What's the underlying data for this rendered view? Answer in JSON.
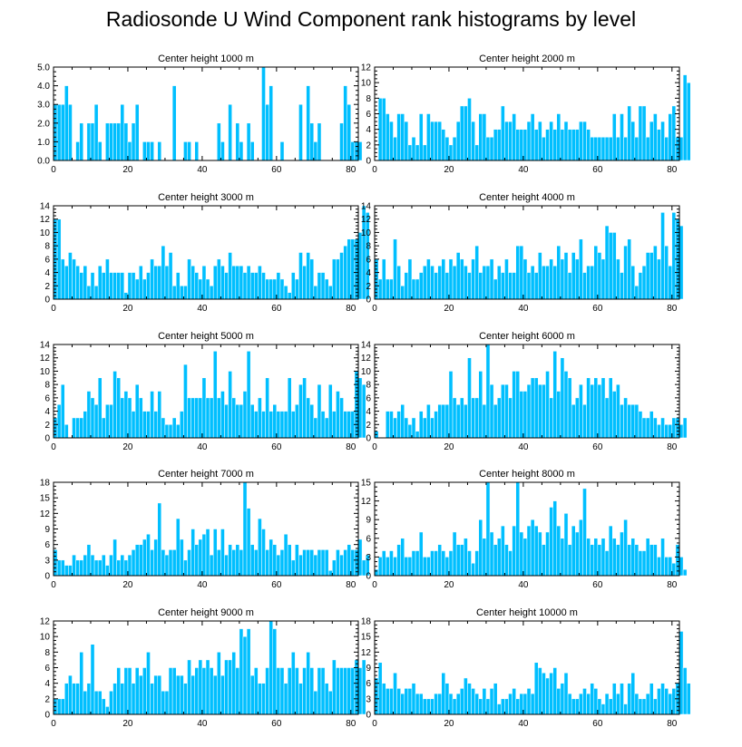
{
  "title": "Radiosonde U Wind Component rank histograms by level",
  "bar_color": "#00BFFF",
  "bar_edge_color": "#ffffff",
  "chart_data": [
    {
      "type": "bar",
      "title": "Center height 1000 m",
      "xlim": [
        0,
        82
      ],
      "xticks": [
        0,
        20,
        40,
        60,
        80
      ],
      "ylim": [
        0,
        5
      ],
      "yticks": [
        0,
        1,
        2,
        3,
        4,
        5
      ],
      "ytick_labels": [
        "0.0",
        "1.0",
        "2.0",
        "3.0",
        "4.0",
        "5.0"
      ],
      "values": [
        3,
        3,
        3,
        4,
        3,
        0,
        1,
        2,
        0,
        2,
        2,
        3,
        1,
        0,
        2,
        2,
        2,
        2,
        3,
        2,
        1,
        2,
        3,
        0,
        1,
        1,
        1,
        0,
        1,
        0,
        0,
        0,
        4,
        0,
        0,
        1,
        1,
        0,
        1,
        0,
        0,
        0,
        0,
        0,
        2,
        1,
        0,
        3,
        0,
        2,
        1,
        0,
        2,
        1,
        0,
        0,
        5,
        3,
        4,
        0,
        0,
        1,
        0,
        0,
        0,
        0,
        3,
        0,
        4,
        2,
        1,
        2,
        0,
        0,
        0,
        0,
        0,
        2,
        4,
        3,
        1,
        1,
        1
      ]
    },
    {
      "type": "bar",
      "title": "Center height 2000 m",
      "xlim": [
        0,
        82
      ],
      "xticks": [
        0,
        20,
        40,
        60,
        80
      ],
      "ylim": [
        0,
        12
      ],
      "yticks": [
        0,
        2,
        4,
        6,
        8,
        10,
        12
      ],
      "values": [
        0,
        8,
        8,
        6,
        5,
        3,
        6,
        6,
        5,
        2,
        3,
        2,
        6,
        2,
        6,
        5,
        5,
        5,
        4,
        3,
        2,
        3,
        5,
        7,
        7,
        8,
        5,
        2,
        6,
        6,
        3,
        3,
        4,
        4,
        7,
        5,
        5,
        6,
        4,
        4,
        4,
        5,
        6,
        4,
        5,
        3,
        4,
        5,
        4,
        6,
        4,
        5,
        4,
        4,
        4,
        5,
        5,
        4,
        3,
        3,
        3,
        3,
        3,
        3,
        6,
        3,
        6,
        3,
        7,
        5,
        3,
        7,
        7,
        3,
        5,
        6,
        4,
        5,
        3,
        6,
        7,
        3,
        3,
        11,
        10
      ]
    },
    {
      "type": "bar",
      "title": "Center height 3000 m",
      "xlim": [
        0,
        82
      ],
      "xticks": [
        0,
        20,
        40,
        60,
        80
      ],
      "ylim": [
        0,
        14
      ],
      "yticks": [
        0,
        2,
        4,
        6,
        8,
        10,
        12,
        14
      ],
      "values": [
        12,
        12,
        6,
        5,
        7,
        6,
        5,
        4,
        5,
        2,
        4,
        2,
        5,
        4,
        6,
        4,
        4,
        4,
        4,
        1,
        4,
        4,
        3,
        5,
        3,
        4,
        6,
        5,
        5,
        8,
        5,
        7,
        2,
        4,
        2,
        2,
        6,
        5,
        4,
        3,
        5,
        3,
        2,
        5,
        6,
        5,
        4,
        7,
        5,
        5,
        5,
        4,
        5,
        4,
        4,
        5,
        4,
        3,
        3,
        3,
        4,
        3,
        2,
        1,
        4,
        3,
        7,
        5,
        7,
        6,
        2,
        4,
        4,
        3,
        2,
        6,
        6,
        7,
        8,
        9,
        9,
        9,
        10,
        14,
        13
      ]
    },
    {
      "type": "bar",
      "title": "Center height 4000 m",
      "xlim": [
        0,
        82
      ],
      "xticks": [
        0,
        20,
        40,
        60,
        80
      ],
      "ylim": [
        0,
        14
      ],
      "yticks": [
        0,
        2,
        4,
        6,
        8,
        10,
        12,
        14
      ],
      "values": [
        6,
        3,
        6,
        3,
        3,
        9,
        5,
        2,
        4,
        6,
        3,
        3,
        4,
        5,
        6,
        5,
        4,
        5,
        6,
        4,
        6,
        5,
        7,
        6,
        5,
        4,
        6,
        8,
        4,
        5,
        5,
        6,
        3,
        5,
        4,
        6,
        4,
        4,
        8,
        8,
        6,
        4,
        5,
        4,
        7,
        5,
        5,
        6,
        5,
        8,
        6,
        7,
        4,
        7,
        6,
        9,
        4,
        5,
        5,
        8,
        7,
        6,
        11,
        10,
        10,
        6,
        4,
        8,
        9,
        5,
        2,
        4,
        5,
        7,
        7,
        8,
        6,
        13,
        8,
        5,
        13,
        12,
        11
      ]
    },
    {
      "type": "bar",
      "title": "Center height 5000 m",
      "xlim": [
        0,
        82
      ],
      "xticks": [
        0,
        20,
        40,
        60,
        80
      ],
      "ylim": [
        0,
        14
      ],
      "yticks": [
        0,
        2,
        4,
        6,
        8,
        10,
        12,
        14
      ],
      "values": [
        3,
        5,
        8,
        2,
        0,
        3,
        3,
        3,
        4,
        7,
        6,
        5,
        9,
        3,
        5,
        5,
        10,
        9,
        6,
        7,
        6,
        4,
        8,
        6,
        4,
        4,
        7,
        4,
        7,
        3,
        2,
        2,
        3,
        2,
        4,
        11,
        6,
        6,
        6,
        6,
        9,
        6,
        6,
        13,
        6,
        7,
        5,
        10,
        6,
        5,
        5,
        7,
        13,
        5,
        4,
        6,
        4,
        9,
        4,
        5,
        4,
        4,
        4,
        9,
        4,
        5,
        8,
        9,
        6,
        5,
        3,
        8,
        4,
        3,
        8,
        4,
        7,
        6,
        4,
        4,
        4,
        10,
        9,
        8
      ]
    },
    {
      "type": "bar",
      "title": "Center height 6000 m",
      "xlim": [
        0,
        82
      ],
      "xticks": [
        0,
        20,
        40,
        60,
        80
      ],
      "ylim": [
        0,
        14
      ],
      "yticks": [
        0,
        2,
        4,
        6,
        8,
        10,
        12,
        14
      ],
      "values": [
        1,
        0,
        0,
        4,
        4,
        3,
        4,
        5,
        3,
        2,
        3,
        1,
        4,
        3,
        5,
        3,
        4,
        5,
        5,
        5,
        10,
        6,
        5,
        6,
        5,
        12,
        6,
        6,
        10,
        5,
        14,
        8,
        5,
        6,
        8,
        8,
        6,
        10,
        10,
        7,
        7,
        8,
        9,
        9,
        8,
        8,
        10,
        6,
        13,
        7,
        12,
        10,
        9,
        5,
        6,
        8,
        5,
        9,
        8,
        9,
        8,
        9,
        6,
        9,
        7,
        8,
        5,
        6,
        5,
        5,
        5,
        4,
        3,
        3,
        4,
        3,
        2,
        3,
        2,
        2,
        3,
        3,
        2,
        3
      ]
    },
    {
      "type": "bar",
      "title": "Center height 7000 m",
      "xlim": [
        0,
        82
      ],
      "xticks": [
        0,
        20,
        40,
        60,
        80
      ],
      "ylim": [
        0,
        18
      ],
      "yticks": [
        0,
        3,
        6,
        9,
        12,
        15,
        18
      ],
      "values": [
        5,
        3,
        3,
        2,
        2,
        4,
        3,
        3,
        4,
        6,
        4,
        3,
        3,
        4,
        2,
        4,
        7,
        3,
        4,
        3,
        4,
        5,
        6,
        6,
        7,
        8,
        5,
        7,
        14,
        5,
        4,
        5,
        5,
        11,
        7,
        3,
        5,
        9,
        6,
        7,
        8,
        9,
        4,
        9,
        5,
        9,
        4,
        6,
        5,
        6,
        5,
        18,
        13,
        6,
        5,
        11,
        9,
        5,
        7,
        6,
        4,
        5,
        8,
        6,
        3,
        6,
        4,
        5,
        5,
        5,
        4,
        5,
        5,
        5,
        1,
        3,
        5,
        4,
        5,
        6,
        5,
        5,
        7,
        3,
        4
      ]
    },
    {
      "type": "bar",
      "title": "Center height 8000 m",
      "xlim": [
        0,
        82
      ],
      "xticks": [
        0,
        20,
        40,
        60,
        80
      ],
      "ylim": [
        0,
        15
      ],
      "yticks": [
        0,
        3,
        6,
        9,
        12,
        15
      ],
      "values": [
        1,
        3,
        4,
        3,
        4,
        3,
        5,
        6,
        3,
        3,
        4,
        4,
        7,
        3,
        3,
        4,
        4,
        5,
        4,
        3,
        4,
        7,
        5,
        5,
        6,
        4,
        2,
        4,
        9,
        6,
        15,
        7,
        5,
        6,
        8,
        5,
        4,
        8,
        15,
        7,
        6,
        8,
        9,
        8,
        7,
        5,
        7,
        11,
        12,
        8,
        6,
        10,
        5,
        8,
        7,
        9,
        14,
        6,
        5,
        6,
        5,
        6,
        4,
        8,
        6,
        5,
        7,
        9,
        5,
        6,
        5,
        4,
        4,
        6,
        5,
        5,
        3,
        6,
        3,
        3,
        2,
        5,
        3,
        1
      ]
    },
    {
      "type": "bar",
      "title": "Center height 9000 m",
      "xlim": [
        0,
        82
      ],
      "xticks": [
        0,
        20,
        40,
        60,
        80
      ],
      "ylim": [
        0,
        12
      ],
      "yticks": [
        0,
        2,
        4,
        6,
        8,
        10,
        12
      ],
      "values": [
        2,
        2,
        2,
        4,
        5,
        4,
        4,
        8,
        3,
        4,
        9,
        3,
        3,
        2,
        1,
        3,
        4,
        6,
        4,
        6,
        6,
        4,
        6,
        5,
        6,
        8,
        4,
        5,
        5,
        3,
        3,
        6,
        6,
        5,
        5,
        4,
        7,
        5,
        6,
        7,
        6,
        7,
        6,
        5,
        8,
        5,
        7,
        7,
        8,
        6,
        11,
        10,
        11,
        5,
        6,
        4,
        4,
        6,
        12,
        11,
        6,
        6,
        4,
        6,
        8,
        6,
        4,
        6,
        8,
        6,
        3,
        6,
        6,
        4,
        3,
        7,
        6,
        6,
        6,
        6,
        6,
        7,
        6,
        7
      ]
    },
    {
      "type": "bar",
      "title": "Center height 10000 m",
      "xlim": [
        0,
        82
      ],
      "xticks": [
        0,
        20,
        40,
        60,
        80
      ],
      "ylim": [
        0,
        18
      ],
      "yticks": [
        0,
        3,
        6,
        9,
        12,
        15,
        18
      ],
      "values": [
        7,
        10,
        6,
        5,
        5,
        8,
        5,
        4,
        5,
        5,
        6,
        4,
        4,
        3,
        3,
        3,
        4,
        4,
        8,
        6,
        4,
        3,
        4,
        5,
        7,
        6,
        5,
        4,
        3,
        5,
        3,
        5,
        6,
        2,
        3,
        3,
        4,
        5,
        3,
        4,
        4,
        5,
        4,
        10,
        9,
        8,
        7,
        8,
        9,
        5,
        6,
        8,
        4,
        3,
        3,
        4,
        5,
        4,
        6,
        5,
        3,
        2,
        4,
        3,
        6,
        4,
        6,
        2,
        6,
        8,
        4,
        3,
        3,
        4,
        6,
        3,
        5,
        6,
        5,
        4,
        5,
        6,
        16,
        9,
        6
      ]
    }
  ]
}
